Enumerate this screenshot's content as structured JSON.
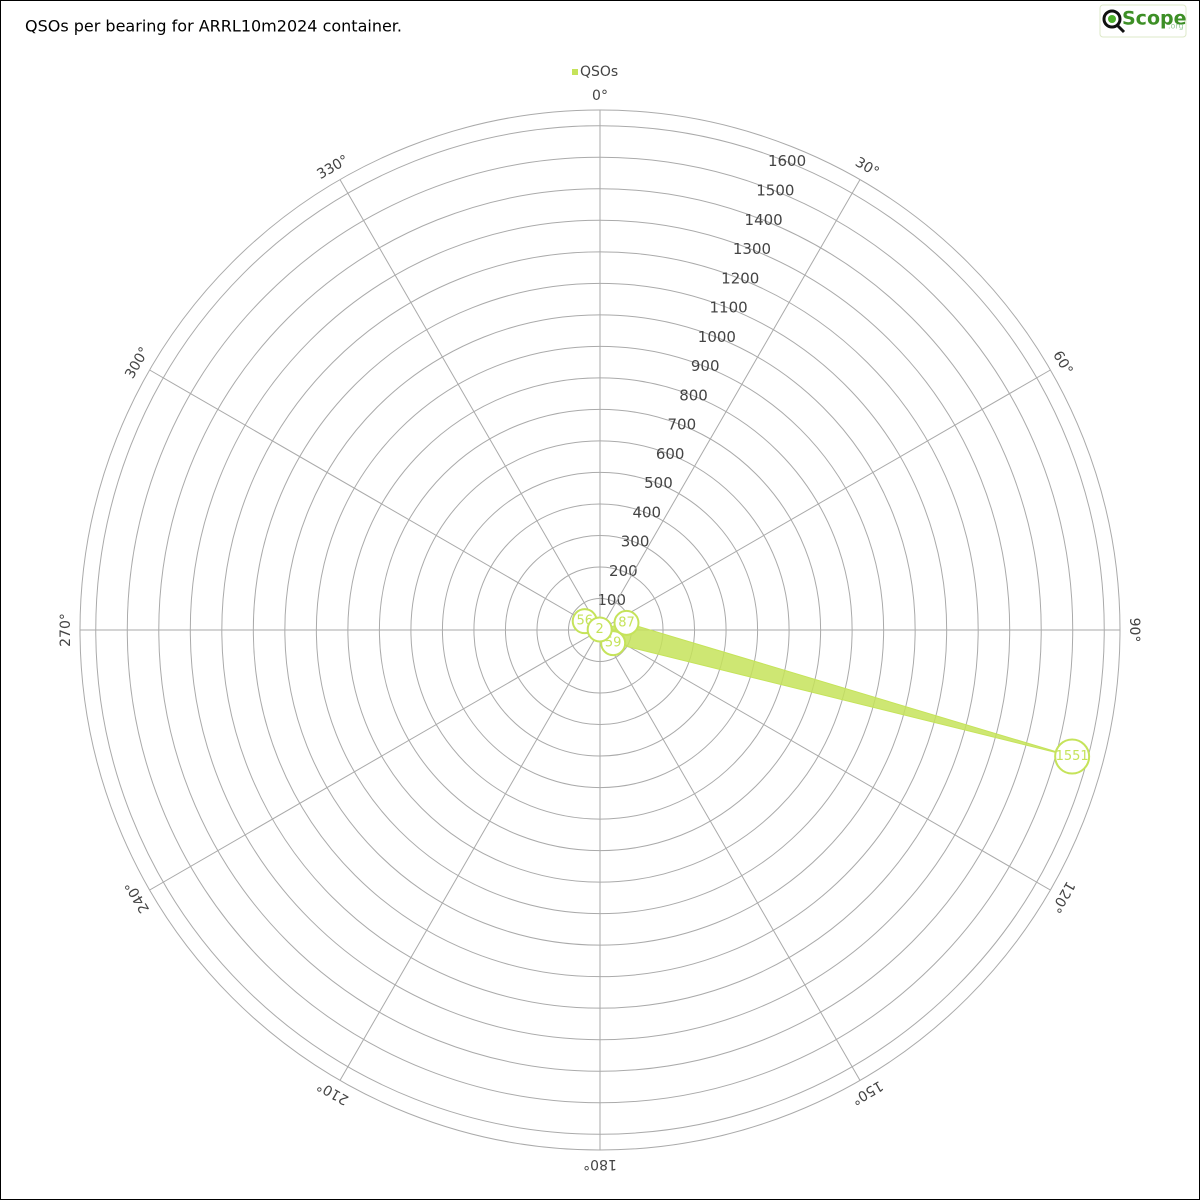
{
  "chart_data": {
    "type": "polar",
    "title": "QSOs per bearing for ARRL10m2024 container.",
    "logo": {
      "text": "Scope",
      "suffix": ".org"
    },
    "series": [
      {
        "name": "QSOs",
        "color": "#c5e35a",
        "theta": [
          75,
          105,
          135,
          300,
          330
        ],
        "values": [
          87,
          1551,
          59,
          56,
          2
        ]
      }
    ],
    "rlim": [
      0,
      1650
    ],
    "rticks": [
      100,
      200,
      300,
      400,
      500,
      600,
      700,
      800,
      900,
      1000,
      1100,
      1200,
      1300,
      1400,
      1500,
      1600
    ],
    "thetaticks": [
      {
        "value": 0,
        "label": "0°"
      },
      {
        "value": 30,
        "label": "30°"
      },
      {
        "value": 60,
        "label": "60°"
      },
      {
        "value": 90,
        "label": "90°"
      },
      {
        "value": 120,
        "label": "120°"
      },
      {
        "value": 150,
        "label": "150°"
      },
      {
        "value": 180,
        "label": "180°"
      },
      {
        "value": 210,
        "label": "210°"
      },
      {
        "value": 240,
        "label": "240°"
      },
      {
        "value": 270,
        "label": "270°"
      },
      {
        "value": 300,
        "label": "300°"
      },
      {
        "value": 330,
        "label": "330°"
      }
    ],
    "grid": true,
    "legend": "top"
  }
}
